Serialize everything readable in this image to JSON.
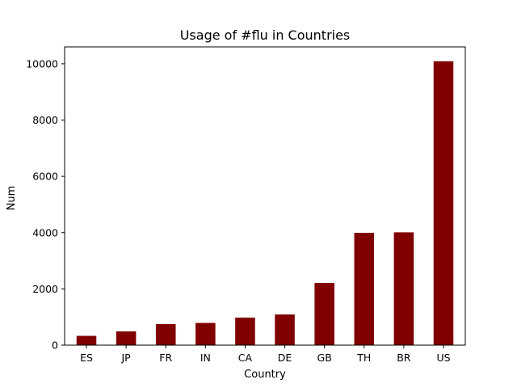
{
  "chart_data": {
    "type": "bar",
    "title": "Usage of #flu in Countries",
    "xlabel": "Country",
    "ylabel": "Num",
    "categories": [
      "ES",
      "JP",
      "FR",
      "IN",
      "CA",
      "DE",
      "GB",
      "TH",
      "BR",
      "US"
    ],
    "values": [
      330,
      490,
      750,
      790,
      980,
      1090,
      2210,
      3990,
      4010,
      10090
    ],
    "ylim": [
      0,
      10600
    ],
    "yticks": [
      0,
      2000,
      4000,
      6000,
      8000,
      10000
    ],
    "bar_color": "#800000",
    "grid": false,
    "legend": "none"
  }
}
